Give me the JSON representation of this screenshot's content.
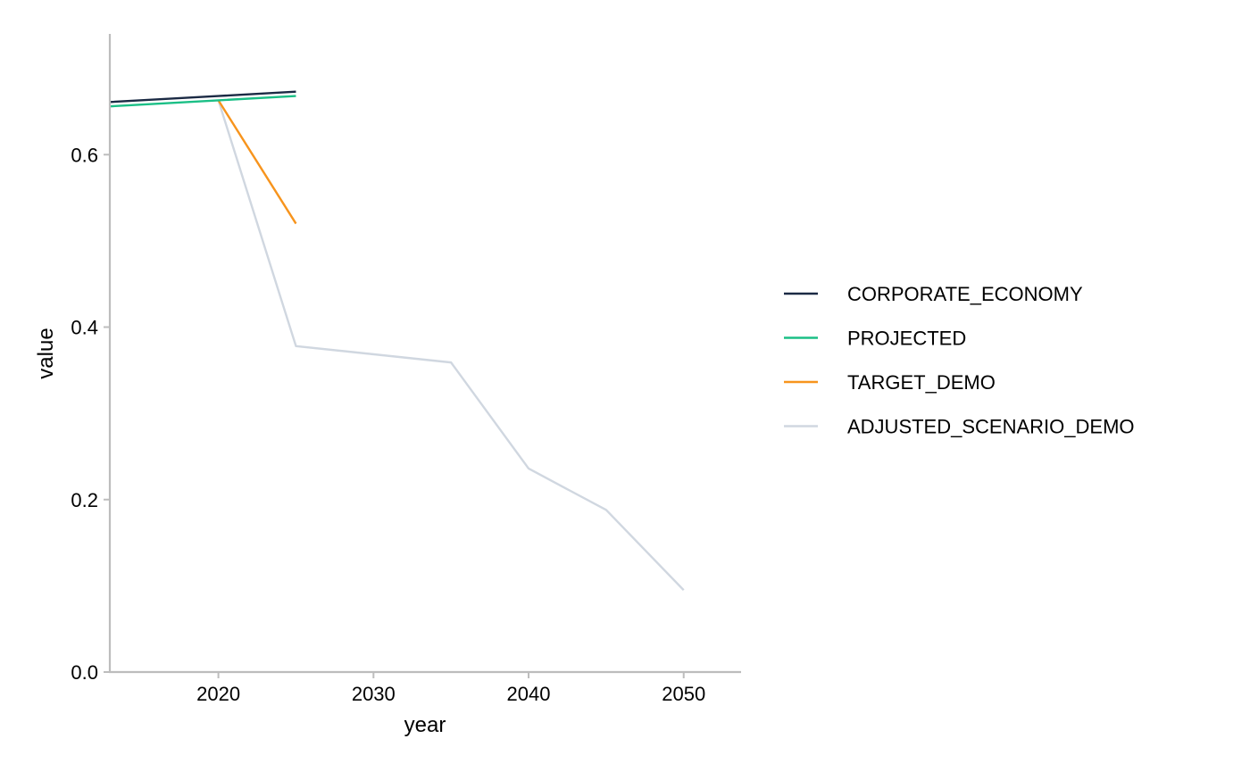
{
  "chart_data": {
    "type": "line",
    "xlabel": "year",
    "ylabel": "value",
    "xlim": [
      2013,
      2053.7
    ],
    "ylim": [
      0,
      0.74
    ],
    "x_ticks": [
      2020,
      2030,
      2040,
      2050
    ],
    "x_tick_labels": [
      "2020",
      "2030",
      "2040",
      "2050"
    ],
    "y_ticks": [
      0,
      0.2,
      0.4,
      0.6
    ],
    "y_tick_labels": [
      "0.0",
      "0.2",
      "0.4",
      "0.6"
    ],
    "grid": false,
    "legend_position": "right",
    "series": [
      {
        "name": "CORPORATE_ECONOMY",
        "color": "#1b2a44",
        "x": [
          2013,
          2020,
          2025
        ],
        "y": [
          0.661,
          0.668,
          0.673
        ]
      },
      {
        "name": "PROJECTED",
        "color": "#1bbf86",
        "x": [
          2013,
          2020,
          2025
        ],
        "y": [
          0.656,
          0.663,
          0.668
        ]
      },
      {
        "name": "TARGET_DEMO",
        "color": "#f7941d",
        "x": [
          2020,
          2025
        ],
        "y": [
          0.663,
          0.52
        ]
      },
      {
        "name": "ADJUSTED_SCENARIO_DEMO",
        "color": "#d0d7e0",
        "x": [
          2020,
          2025,
          2035,
          2040,
          2045,
          2050
        ],
        "y": [
          0.663,
          0.378,
          0.359,
          0.236,
          0.188,
          0.095
        ]
      }
    ]
  }
}
